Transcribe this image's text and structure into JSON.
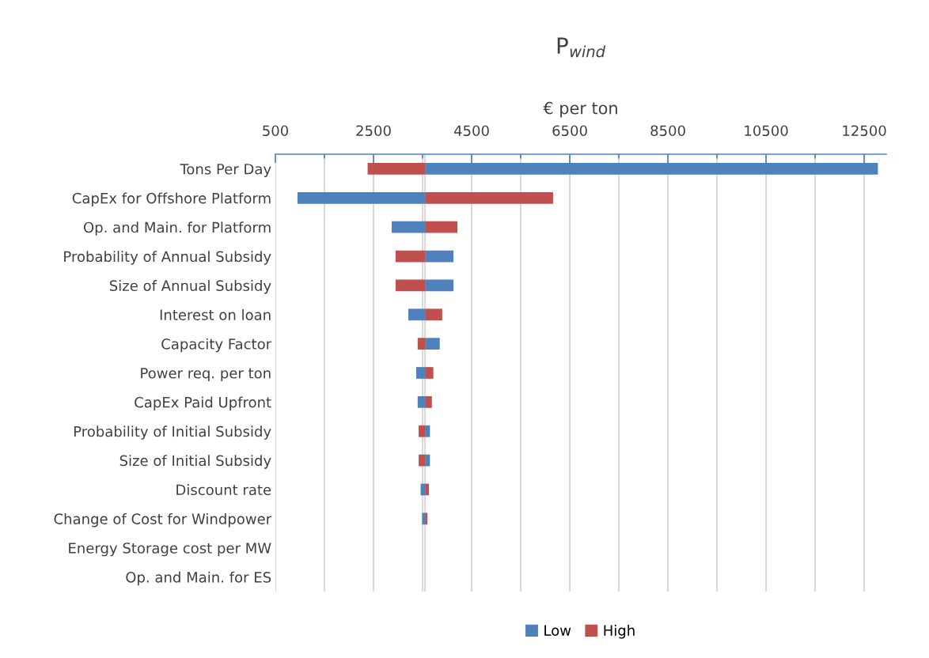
{
  "chart_data": {
    "type": "bar",
    "orientation": "horizontal",
    "title": "P$_{wind}$",
    "xlabel": "€ per ton",
    "categories": [
      "Tons Per Day",
      "CapEx for Offshore Platform",
      "Op. and Main. for Platform",
      "Probability of Annual Subsidy",
      "Size of Annual Subsidy",
      "Interest on loan",
      "Capacity Factor",
      "Power req. per ton",
      "CapEx Paid Upfront",
      "Probability of Initial Subsidy",
      "Size of Initial Subsidy",
      "Discount rate",
      "Change of Cost for Windpower",
      "Energy Storage cost per MW",
      "Op. and Main. for ES"
    ],
    "series": [
      {
        "name": "Low",
        "color": "#4f81bd",
        "base": [
          3550,
          3550,
          3550,
          3550,
          3550,
          3550,
          3550,
          3550,
          3550,
          3550,
          3550,
          3550,
          3550,
          null,
          null
        ],
        "values": [
          9230,
          -2600,
          -680,
          580,
          580,
          -340,
          300,
          -180,
          -150,
          100,
          100,
          -90,
          -60,
          0,
          0
        ]
      },
      {
        "name": "High",
        "color": "#c0504d",
        "base": [
          3550,
          3550,
          3550,
          3550,
          3550,
          3550,
          3550,
          3550,
          3550,
          3550,
          3550,
          3550,
          3550,
          null,
          null
        ],
        "values": [
          -1170,
          2610,
          660,
          -600,
          -600,
          350,
          -150,
          170,
          140,
          -130,
          -130,
          80,
          50,
          0,
          0
        ]
      }
    ],
    "xlim": [
      500,
      12950
    ],
    "xticks": [
      500,
      {
        "value": 1500,
        "label": null
      },
      2500,
      {
        "value": 3500,
        "label": null
      },
      4500,
      {
        "value": 5500,
        "label": null
      },
      6500,
      {
        "value": 7500,
        "label": null
      },
      8500,
      {
        "value": 9500,
        "label": null
      },
      10500,
      {
        "value": 11500,
        "label": null
      },
      12500
    ],
    "ref_lines": [
      {
        "axis": "x",
        "value": 3550,
        "color": "#d9d9d9"
      }
    ],
    "grid": "x",
    "legend": "bottom"
  }
}
